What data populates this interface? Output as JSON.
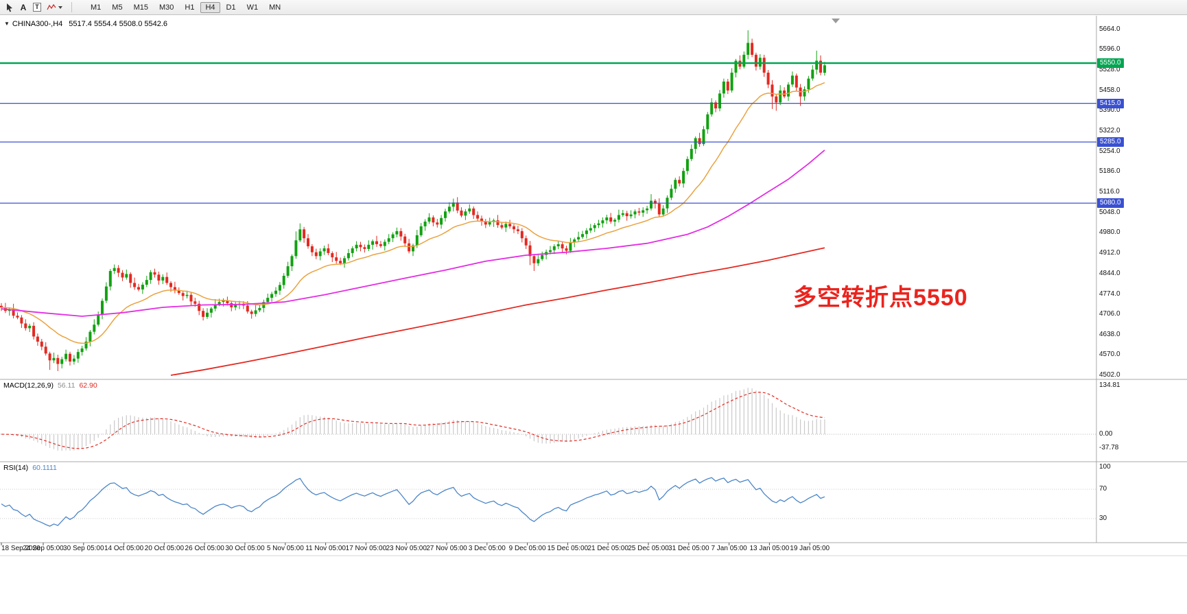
{
  "toolbar": {
    "tools": [
      {
        "name": "cursor"
      },
      {
        "name": "text-label",
        "glyph": "A"
      },
      {
        "name": "text-box",
        "glyph": "T"
      },
      {
        "name": "polyline"
      }
    ],
    "timeframes": [
      "M1",
      "M5",
      "M15",
      "M30",
      "H1",
      "H4",
      "D1",
      "W1",
      "MN"
    ],
    "selected_timeframe": "H4"
  },
  "chart": {
    "dropdown_glyph": "▼",
    "title_symbol": "CHINA300-,H4",
    "title_ohlc": "5517.4 5554.4 5508.0 5542.6"
  },
  "price_axis": {
    "ticks": [
      "5664.0",
      "5596.0",
      "5528.0",
      "5458.0",
      "5390.0",
      "5322.0",
      "5254.0",
      "5186.0",
      "5116.0",
      "5048.0",
      "4980.0",
      "4912.0",
      "4844.0",
      "4774.0",
      "4706.0",
      "4638.0",
      "4570.0",
      "4502.0"
    ],
    "levels": [
      {
        "label": "5550.0",
        "price": 5550,
        "color": "#00a651",
        "line_width": 2.4
      },
      {
        "label": "5415.0",
        "price": 5415,
        "color": "#3950d2",
        "line_width": 1.3
      },
      {
        "label": "5285.0",
        "price": 5285,
        "color": "#3950d2",
        "line_width": 1.3
      },
      {
        "label": "5080.0",
        "price": 5080,
        "color": "#3950d2",
        "line_width": 1.3
      }
    ]
  },
  "indicators": {
    "macd": {
      "label": "MACD(12,26,9)",
      "value_main": "56.11",
      "value_signal": "62.90",
      "scale": [
        "134.81",
        "0.00",
        "-37.78"
      ],
      "fast_period": 12,
      "slow_period": 26,
      "signal_period": 9,
      "hist_color": "#c9c9c9",
      "signal_color": "#e22a22"
    },
    "rsi": {
      "label": "RSI(14)",
      "value": "60.1111",
      "scale": [
        "100",
        "70",
        "30"
      ],
      "period": 14,
      "levels": [
        70,
        30
      ],
      "color": "#4a85c8"
    }
  },
  "time_axis": {
    "labels": [
      "18 Sep 2020",
      "24 Sep 05:00",
      "30 Sep 05:00",
      "14 Oct 05:00",
      "20 Oct 05:00",
      "26 Oct 05:00",
      "30 Oct 05:00",
      "5 Nov 05:00",
      "11 Nov 05:00",
      "17 Nov 05:00",
      "23 Nov 05:00",
      "27 Nov 05:00",
      "3 Dec 05:00",
      "9 Dec 05:00",
      "15 Dec 05:00",
      "21 Dec 05:00",
      "25 Dec 05:00",
      "31 Dec 05:00",
      "7 Jan 05:00",
      "13 Jan 05:00",
      "19 Jan 05:00"
    ]
  },
  "annotation": {
    "text": "多空转折点5550",
    "color": "#ea241e"
  },
  "chart_data": {
    "type": "candlestick",
    "symbol": "CHINA300-",
    "timeframe": "H4",
    "visible_range": {
      "start": "18 Sep 2020",
      "end": "20 Jan 2021"
    },
    "price_range": [
      4502,
      5664
    ],
    "last_ohlc": {
      "open": 5517.4,
      "high": 5554.4,
      "low": 5508.0,
      "close": 5542.6
    },
    "first_open": 4735,
    "closes": [
      4730,
      4718,
      4724,
      4702,
      4696,
      4676,
      4660,
      4668,
      4632,
      4615,
      4598,
      4575,
      4552,
      4560,
      4540,
      4556,
      4574,
      4548,
      4558,
      4580,
      4592,
      4615,
      4648,
      4672,
      4705,
      4752,
      4800,
      4852,
      4862,
      4846,
      4830,
      4842,
      4812,
      4798,
      4790,
      4806,
      4822,
      4848,
      4840,
      4820,
      4832,
      4812,
      4798,
      4786,
      4778,
      4768,
      4772,
      4750,
      4742,
      4718,
      4698,
      4712,
      4726,
      4740,
      4748,
      4752,
      4744,
      4730,
      4738,
      4742,
      4736,
      4716,
      4708,
      4720,
      4728,
      4748,
      4762,
      4775,
      4786,
      4805,
      4836,
      4868,
      4902,
      4955,
      4992,
      4962,
      4935,
      4915,
      4902,
      4918,
      4928,
      4912,
      4898,
      4886,
      4878,
      4895,
      4912,
      4928,
      4940,
      4932,
      4926,
      4940,
      4952,
      4942,
      4936,
      4950,
      4962,
      4975,
      4986,
      4968,
      4945,
      4918,
      4938,
      4972,
      5002,
      5018,
      5032,
      5015,
      5008,
      5030,
      5052,
      5068,
      5082,
      5055,
      5038,
      5052,
      5062,
      5040,
      5028,
      5018,
      5008,
      5016,
      5022,
      5006,
      4998,
      5010,
      5002,
      4992,
      4986,
      4962,
      4938,
      4902,
      4878,
      4892,
      4906,
      4916,
      4922,
      4935,
      4942,
      4928,
      4920,
      4948,
      4958,
      4966,
      4976,
      4988,
      4996,
      5006,
      5012,
      5022,
      5032,
      5018,
      5024,
      5040,
      5046,
      5036,
      5042,
      5052,
      5048,
      5056,
      5062,
      5088,
      5078,
      5042,
      5062,
      5098,
      5128,
      5158,
      5146,
      5188,
      5228,
      5262,
      5298,
      5278,
      5328,
      5378,
      5418,
      5398,
      5448,
      5488,
      5458,
      5518,
      5558,
      5538,
      5578,
      5618,
      5578,
      5538,
      5568,
      5518,
      5478,
      5438,
      5418,
      5458,
      5438,
      5478,
      5508,
      5468,
      5438,
      5462,
      5498,
      5528,
      5558,
      5518,
      5542.6
    ],
    "wick_up": [
      9,
      15,
      6,
      18,
      11,
      8,
      14,
      7,
      12,
      10
    ],
    "wick_down": [
      12,
      7,
      16,
      9,
      6,
      15,
      8,
      13,
      10,
      14
    ],
    "high_overrides": {
      "73": 4985,
      "74": 5012,
      "112": 5095,
      "161": 5110,
      "185": 5660,
      "202": 5592
    },
    "low_overrides": {
      "12": 4520,
      "14": 4516,
      "131": 4872,
      "132": 4852,
      "191": 5396,
      "192": 5390,
      "198": 5406
    },
    "up_color": "#12a112",
    "down_color": "#e22a22",
    "ma_fast": {
      "name": "MA fast",
      "type": "ema",
      "period": 20,
      "color": "#eaa23e"
    },
    "ma_mid": {
      "name": "MA mid",
      "color": "#e42ce4",
      "points": [
        [
          0,
          4725
        ],
        [
          10,
          4712
        ],
        [
          20,
          4700
        ],
        [
          30,
          4712
        ],
        [
          40,
          4730
        ],
        [
          50,
          4738
        ],
        [
          60,
          4740
        ],
        [
          70,
          4748
        ],
        [
          80,
          4772
        ],
        [
          90,
          4800
        ],
        [
          100,
          4828
        ],
        [
          110,
          4855
        ],
        [
          120,
          4885
        ],
        [
          130,
          4905
        ],
        [
          140,
          4915
        ],
        [
          150,
          4928
        ],
        [
          160,
          4945
        ],
        [
          170,
          4975
        ],
        [
          175,
          5000
        ],
        [
          180,
          5035
        ],
        [
          185,
          5075
        ],
        [
          190,
          5118
        ],
        [
          195,
          5160
        ],
        [
          200,
          5212
        ],
        [
          204,
          5258
        ]
      ]
    },
    "ma_slow": {
      "name": "MA slow",
      "color": "#e22a22",
      "points": [
        [
          42,
          4502
        ],
        [
          50,
          4520
        ],
        [
          60,
          4545
        ],
        [
          70,
          4572
        ],
        [
          80,
          4600
        ],
        [
          90,
          4628
        ],
        [
          100,
          4655
        ],
        [
          110,
          4682
        ],
        [
          120,
          4710
        ],
        [
          130,
          4738
        ],
        [
          140,
          4762
        ],
        [
          150,
          4788
        ],
        [
          160,
          4812
        ],
        [
          170,
          4838
        ],
        [
          180,
          4862
        ],
        [
          190,
          4888
        ],
        [
          198,
          4912
        ],
        [
          204,
          4930
        ]
      ]
    }
  }
}
